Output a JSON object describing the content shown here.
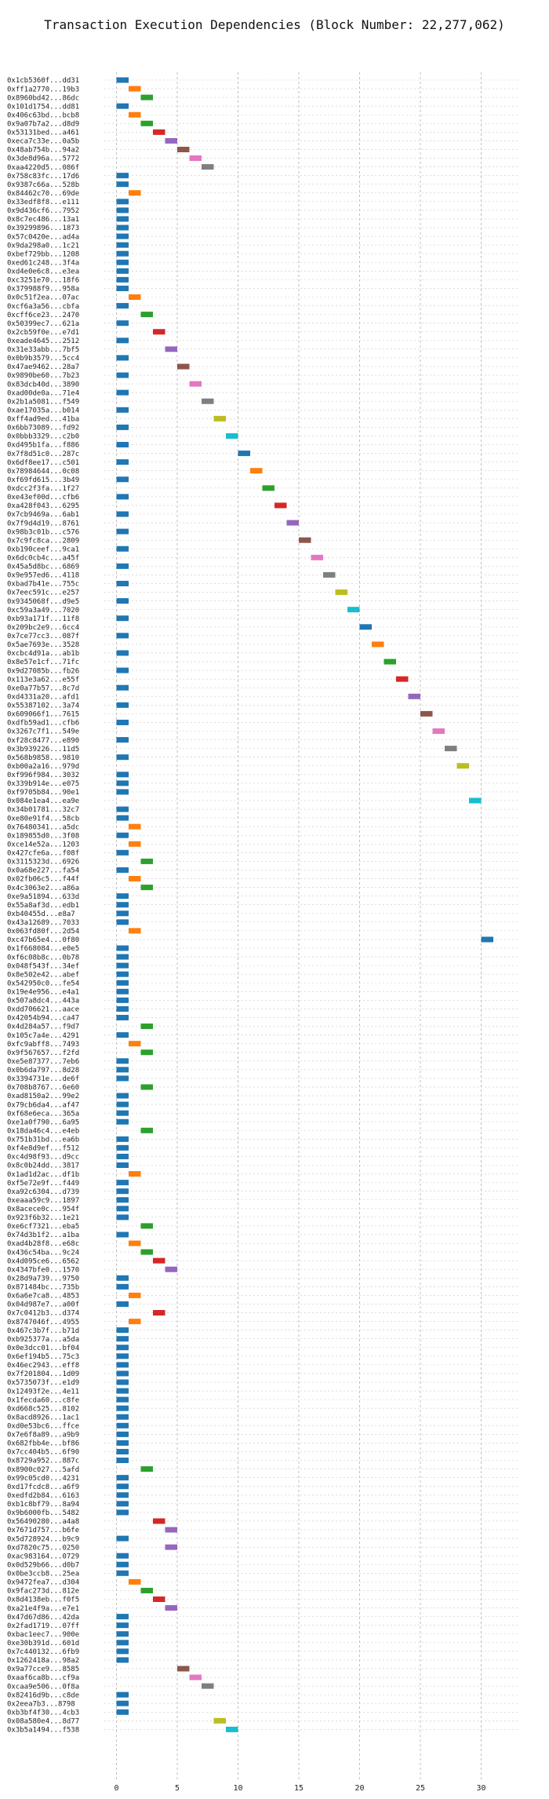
{
  "chart_data": {
    "type": "bar",
    "title": "Transaction Execution Dependencies (Block Number: 22,277,062)",
    "xlabel": "",
    "ylabel": "",
    "xlim": [
      -1,
      33
    ],
    "xticks": [
      0,
      5,
      10,
      15,
      20,
      25,
      30
    ],
    "grid": true,
    "bar_colors": [
      "#1f77b4",
      "#ff7f0e",
      "#2ca02c",
      "#d62728",
      "#9467bd",
      "#8c564b",
      "#e377c2",
      "#7f7f7f",
      "#bcbd22",
      "#17becf"
    ],
    "transactions": [
      {
        "label": "0x1cb5360f...dd31",
        "start": 0
      },
      {
        "label": "0xff1a2770...19b3",
        "start": 1
      },
      {
        "label": "0x8960bd42...86dc",
        "start": 2
      },
      {
        "label": "0x101d1754...dd81",
        "start": 0
      },
      {
        "label": "0x406c63bd...bcb8",
        "start": 1
      },
      {
        "label": "0x9a07b7a2...d8d9",
        "start": 2
      },
      {
        "label": "0x53131bed...a461",
        "start": 3
      },
      {
        "label": "0xeca7c33e...0a5b",
        "start": 4
      },
      {
        "label": "0x48ab754b...94a2",
        "start": 5
      },
      {
        "label": "0x3de8d96a...5772",
        "start": 6
      },
      {
        "label": "0xaa4220d5...086f",
        "start": 7
      },
      {
        "label": "0x758c83fc...17d6",
        "start": 0
      },
      {
        "label": "0x9387c66a...528b",
        "start": 0
      },
      {
        "label": "0x84462c70...69de",
        "start": 1
      },
      {
        "label": "0x33edf8f8...e111",
        "start": 0
      },
      {
        "label": "0x9d436cf6...7952",
        "start": 0
      },
      {
        "label": "0x8c7ec486...13a1",
        "start": 0
      },
      {
        "label": "0x39299896...1873",
        "start": 0
      },
      {
        "label": "0x57c0420e...ad4a",
        "start": 0
      },
      {
        "label": "0x9da298a0...1c21",
        "start": 0
      },
      {
        "label": "0xbef729bb...1208",
        "start": 0
      },
      {
        "label": "0xed61c248...3f4a",
        "start": 0
      },
      {
        "label": "0xd4e0e6c8...e3ea",
        "start": 0
      },
      {
        "label": "0xc3251e70...18f6",
        "start": 0
      },
      {
        "label": "0x379988f9...958a",
        "start": 0
      },
      {
        "label": "0x0c51f2ea...07ac",
        "start": 1
      },
      {
        "label": "0xcf6a3a56...cbfa",
        "start": 0
      },
      {
        "label": "0xcff6ce23...2470",
        "start": 2
      },
      {
        "label": "0x50399ec7...621a",
        "start": 0
      },
      {
        "label": "0x2cb59f0e...e7d1",
        "start": 3
      },
      {
        "label": "0xeade4645...2512",
        "start": 0
      },
      {
        "label": "0x31e33abb...7bf5",
        "start": 4
      },
      {
        "label": "0x0b9b3579...5cc4",
        "start": 0
      },
      {
        "label": "0x47ae9462...28a7",
        "start": 5
      },
      {
        "label": "0x9890be60...7b23",
        "start": 0
      },
      {
        "label": "0x83dcb40d...3890",
        "start": 6
      },
      {
        "label": "0xad00de0a...71e4",
        "start": 0
      },
      {
        "label": "0x2b1a5081...f549",
        "start": 7
      },
      {
        "label": "0xae17035a...b014",
        "start": 0
      },
      {
        "label": "0xff4ad9ed...41ba",
        "start": 8
      },
      {
        "label": "0x6bb73089...fd92",
        "start": 0
      },
      {
        "label": "0x0bbb3329...c2b0",
        "start": 9
      },
      {
        "label": "0xd495b1fa...f886",
        "start": 0
      },
      {
        "label": "0x7f8d51c0...287c",
        "start": 10
      },
      {
        "label": "0x6df8ee17...c501",
        "start": 0
      },
      {
        "label": "0x78984644...0c08",
        "start": 11
      },
      {
        "label": "0xf69fd615...3b49",
        "start": 0
      },
      {
        "label": "0xdcc2f3fa...1f27",
        "start": 12
      },
      {
        "label": "0xe43ef00d...cfb6",
        "start": 0
      },
      {
        "label": "0xa428f043...6295",
        "start": 13
      },
      {
        "label": "0x7cb9469a...6ab1",
        "start": 0
      },
      {
        "label": "0x7f9d4d19...8761",
        "start": 14
      },
      {
        "label": "0x98b3c01b...c576",
        "start": 0
      },
      {
        "label": "0x7c9fc8ca...2809",
        "start": 15
      },
      {
        "label": "0xb190ceef...9ca1",
        "start": 0
      },
      {
        "label": "0x6dc0cb4c...a45f",
        "start": 16
      },
      {
        "label": "0x45a5d8bc...6869",
        "start": 0
      },
      {
        "label": "0x9e957ed6...4118",
        "start": 17
      },
      {
        "label": "0xbad7b41e...755c",
        "start": 0
      },
      {
        "label": "0x7eec591c...e257",
        "start": 18
      },
      {
        "label": "0x9345068f...d9e5",
        "start": 0
      },
      {
        "label": "0xc59a3a49...7020",
        "start": 19
      },
      {
        "label": "0xb93a171f...11f8",
        "start": 0
      },
      {
        "label": "0x209bc2e9...6cc4",
        "start": 20
      },
      {
        "label": "0x7ce77cc3...087f",
        "start": 0
      },
      {
        "label": "0x5ae7693e...3528",
        "start": 21
      },
      {
        "label": "0xcbc4d91a...ab1b",
        "start": 0
      },
      {
        "label": "0x8e57e1cf...71fc",
        "start": 22
      },
      {
        "label": "0x9d27085b...fb26",
        "start": 0
      },
      {
        "label": "0x113e3a62...e55f",
        "start": 23
      },
      {
        "label": "0xe0a77b57...8c7d",
        "start": 0
      },
      {
        "label": "0xd4331a20...afd1",
        "start": 24
      },
      {
        "label": "0x55387102...3a74",
        "start": 0
      },
      {
        "label": "0x609066f1...7615",
        "start": 25
      },
      {
        "label": "0xdfb59ad1...cfb6",
        "start": 0
      },
      {
        "label": "0x3267c7f1...549e",
        "start": 26
      },
      {
        "label": "0xf28c8477...e890",
        "start": 0
      },
      {
        "label": "0x3b939226...11d5",
        "start": 27
      },
      {
        "label": "0x568b9858...9810",
        "start": 0
      },
      {
        "label": "0xb00a2a16...979d",
        "start": 28
      },
      {
        "label": "0xf996f984...3032",
        "start": 0
      },
      {
        "label": "0x339b914e...e075",
        "start": 0
      },
      {
        "label": "0xf9705b84...90e1",
        "start": 0
      },
      {
        "label": "0x084e1ea4...ea9e",
        "start": 29
      },
      {
        "label": "0x34b01781...32c7",
        "start": 0
      },
      {
        "label": "0xe80e91f4...58cb",
        "start": 0
      },
      {
        "label": "0x76480341...a5dc",
        "start": 1
      },
      {
        "label": "0x189855d0...3f08",
        "start": 0
      },
      {
        "label": "0xce14e52a...1203",
        "start": 1
      },
      {
        "label": "0x427cfe6a...f08f",
        "start": 0
      },
      {
        "label": "0x3115323d...6926",
        "start": 2
      },
      {
        "label": "0x0a68e227...fa54",
        "start": 0
      },
      {
        "label": "0x02fb06c5...f44f",
        "start": 1
      },
      {
        "label": "0x4c3063e2...a86a",
        "start": 2
      },
      {
        "label": "0xe9a51894...633d",
        "start": 0
      },
      {
        "label": "0x55a8af3d...edb1",
        "start": 0
      },
      {
        "label": "0xb40455d...e8a7",
        "start": 0
      },
      {
        "label": "0x43a12689...7033",
        "start": 0
      },
      {
        "label": "0x063fd80f...2d54",
        "start": 1
      },
      {
        "label": "0xc47b65e4...0f80",
        "start": 30
      },
      {
        "label": "0x1f668084...e0e5",
        "start": 0
      },
      {
        "label": "0xf6c08b8c...0b78",
        "start": 0
      },
      {
        "label": "0x048f543f...34ef",
        "start": 0
      },
      {
        "label": "0x8e502e42...abef",
        "start": 0
      },
      {
        "label": "0x542950c0...fe54",
        "start": 0
      },
      {
        "label": "0x19e4e956...e4a1",
        "start": 0
      },
      {
        "label": "0x507a8dc4...443a",
        "start": 0
      },
      {
        "label": "0xdd706621...aace",
        "start": 0
      },
      {
        "label": "0x42054b94...ca47",
        "start": 0
      },
      {
        "label": "0x4d284a57...f9d7",
        "start": 2
      },
      {
        "label": "0x105c7a4e...4291",
        "start": 0
      },
      {
        "label": "0xfc9abff8...7493",
        "start": 1
      },
      {
        "label": "0x9f567657...f2fd",
        "start": 2
      },
      {
        "label": "0xe5e87377...7eb6",
        "start": 0
      },
      {
        "label": "0x0b6da797...8d28",
        "start": 0
      },
      {
        "label": "0x3394731e...de6f",
        "start": 0
      },
      {
        "label": "0x708b8767...6e60",
        "start": 2
      },
      {
        "label": "0xad8150a2...99e2",
        "start": 0
      },
      {
        "label": "0x79cb6da4...af47",
        "start": 0
      },
      {
        "label": "0xf68e6eca...365a",
        "start": 0
      },
      {
        "label": "0xe1a0f790...6a95",
        "start": 0
      },
      {
        "label": "0x18da46c4...e4eb",
        "start": 2
      },
      {
        "label": "0x751b31bd...ea6b",
        "start": 0
      },
      {
        "label": "0xf4e8d9ef...f512",
        "start": 0
      },
      {
        "label": "0xc4d98f93...d9cc",
        "start": 0
      },
      {
        "label": "0x8c0b24dd...3817",
        "start": 0
      },
      {
        "label": "0x1ad1d2ac...df1b",
        "start": 1
      },
      {
        "label": "0xf5e72e9f...f449",
        "start": 0
      },
      {
        "label": "0xa92c6304...d739",
        "start": 0
      },
      {
        "label": "0xeaaa59c9...1897",
        "start": 0
      },
      {
        "label": "0x8acece0c...954f",
        "start": 0
      },
      {
        "label": "0x923f6b32...1e21",
        "start": 0
      },
      {
        "label": "0xe6cf7321...eba5",
        "start": 2
      },
      {
        "label": "0x74d3b1f2...a1ba",
        "start": 0
      },
      {
        "label": "0xad4b28f8...e68c",
        "start": 1
      },
      {
        "label": "0x436c54ba...9c24",
        "start": 2
      },
      {
        "label": "0x4d095ce6...6562",
        "start": 3
      },
      {
        "label": "0x4347bfe0...1570",
        "start": 4
      },
      {
        "label": "0x28d9a739...9750",
        "start": 0
      },
      {
        "label": "0x871484bc...735b",
        "start": 0
      },
      {
        "label": "0x6a6e7ca8...4853",
        "start": 1
      },
      {
        "label": "0x04d987e7...a00f",
        "start": 0
      },
      {
        "label": "0x7c0412b3...d374",
        "start": 3
      },
      {
        "label": "0x8747046f...4955",
        "start": 1
      },
      {
        "label": "0x467c3b7f...b71d",
        "start": 0
      },
      {
        "label": "0xb925377a...a5da",
        "start": 0
      },
      {
        "label": "0x0e3dcc01...bf04",
        "start": 0
      },
      {
        "label": "0x6ef194b5...75c3",
        "start": 0
      },
      {
        "label": "0x46ec2943...eff8",
        "start": 0
      },
      {
        "label": "0x7f201804...1d09",
        "start": 0
      },
      {
        "label": "0x5735073f...e1d9",
        "start": 0
      },
      {
        "label": "0x12493f2e...4e11",
        "start": 0
      },
      {
        "label": "0x1fecda60...c8fe",
        "start": 0
      },
      {
        "label": "0xd668c525...8102",
        "start": 0
      },
      {
        "label": "0x8acd8926...1ac1",
        "start": 0
      },
      {
        "label": "0xd0e53bc6...ffce",
        "start": 0
      },
      {
        "label": "0x7e6f8a89...a9b9",
        "start": 0
      },
      {
        "label": "0x682fbb4e...bf86",
        "start": 0
      },
      {
        "label": "0x7cc404b5...6f90",
        "start": 0
      },
      {
        "label": "0x8729a952...887c",
        "start": 0
      },
      {
        "label": "0x8900c027...5afd",
        "start": 2
      },
      {
        "label": "0x99c05cd0...4231",
        "start": 0
      },
      {
        "label": "0xd17fcdc8...a6f9",
        "start": 0
      },
      {
        "label": "0xedfd2b84...6163",
        "start": 0
      },
      {
        "label": "0xb1c8bf79...8a94",
        "start": 0
      },
      {
        "label": "0x9b6000fb...5482",
        "start": 0
      },
      {
        "label": "0x56490280...a4a8",
        "start": 3
      },
      {
        "label": "0x7671d757...b6fe",
        "start": 4
      },
      {
        "label": "0x5d728924...b9c9",
        "start": 0
      },
      {
        "label": "0xd7820c75...0250",
        "start": 4
      },
      {
        "label": "0xac983164...0729",
        "start": 0
      },
      {
        "label": "0x0d529b66...d0b7",
        "start": 0
      },
      {
        "label": "0x0be3ccb8...25ea",
        "start": 0
      },
      {
        "label": "0x9472fea7...d304",
        "start": 1
      },
      {
        "label": "0x9fac273d...812e",
        "start": 2
      },
      {
        "label": "0x8d4138eb...f0f5",
        "start": 3
      },
      {
        "label": "0xa21e4f9a...e7e1",
        "start": 4
      },
      {
        "label": "0x47d67d86...42da",
        "start": 0
      },
      {
        "label": "0x2fad1719...07ff",
        "start": 0
      },
      {
        "label": "0xbac1eec7...900e",
        "start": 0
      },
      {
        "label": "0xe30b391d...601d",
        "start": 0
      },
      {
        "label": "0x7c440132...6fb9",
        "start": 0
      },
      {
        "label": "0x1262418a...98a2",
        "start": 0
      },
      {
        "label": "0x9a77cce9...8585",
        "start": 5
      },
      {
        "label": "0xaaf6ca8b...cf9a",
        "start": 6
      },
      {
        "label": "0xcaa9e506...0f8a",
        "start": 7
      },
      {
        "label": "0x82416d9b...c8de",
        "start": 0
      },
      {
        "label": "0x2eea7b3...8798",
        "start": 0
      },
      {
        "label": "0xb3bf4f30...4cb3",
        "start": 0
      },
      {
        "label": "0x08a580e4...8d77",
        "start": 8
      },
      {
        "label": "0x3b5a1494...f538",
        "start": 9
      }
    ]
  }
}
